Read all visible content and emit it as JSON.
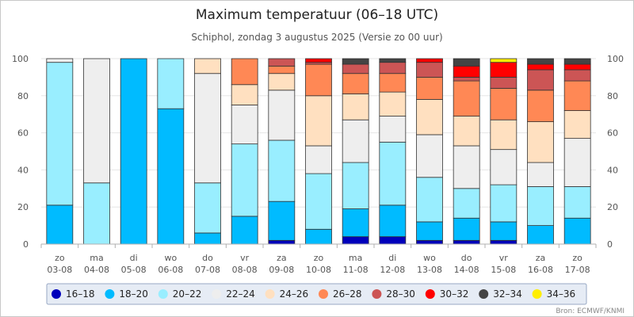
{
  "chart_data": {
    "type": "bar",
    "stacked": true,
    "title": "Maximum temperatuur (06–18 UTC)",
    "subtitle": "Schiphol, zondag 3 augustus 2025 (Versie zo 00 uur)",
    "credit": "Bron: ECMWF/KNMI",
    "ylim": [
      0,
      100
    ],
    "yticks": [
      "0",
      "20",
      "40",
      "60",
      "80",
      "100"
    ],
    "grid": true,
    "legend_position": "bottom",
    "categories": [
      {
        "day": "zo",
        "date": "03-08"
      },
      {
        "day": "ma",
        "date": "04-08"
      },
      {
        "day": "di",
        "date": "05-08"
      },
      {
        "day": "wo",
        "date": "06-08"
      },
      {
        "day": "do",
        "date": "07-08"
      },
      {
        "day": "vr",
        "date": "08-08"
      },
      {
        "day": "za",
        "date": "09-08"
      },
      {
        "day": "zo",
        "date": "10-08"
      },
      {
        "day": "ma",
        "date": "11-08"
      },
      {
        "day": "di",
        "date": "12-08"
      },
      {
        "day": "wo",
        "date": "13-08"
      },
      {
        "day": "do",
        "date": "14-08"
      },
      {
        "day": "vr",
        "date": "15-08"
      },
      {
        "day": "za",
        "date": "16-08"
      },
      {
        "day": "zo",
        "date": "17-08"
      }
    ],
    "series": [
      {
        "name": "16–18",
        "color": "#0000bb",
        "values": [
          0,
          0,
          0,
          0,
          0,
          0,
          2,
          0,
          4,
          4,
          2,
          2,
          2,
          0,
          0
        ]
      },
      {
        "name": "18–20",
        "color": "#00bbff",
        "values": [
          21,
          0,
          100,
          73,
          6,
          15,
          21,
          8,
          15,
          17,
          10,
          12,
          10,
          10,
          14
        ]
      },
      {
        "name": "20–22",
        "color": "#99eeff",
        "values": [
          77,
          33,
          0,
          27,
          27,
          39,
          33,
          30,
          25,
          34,
          24,
          16,
          20,
          21,
          17
        ]
      },
      {
        "name": "22–24",
        "color": "#eeeeee",
        "values": [
          2,
          67,
          0,
          0,
          59,
          21,
          27,
          15,
          23,
          14,
          23,
          23,
          19,
          13,
          26
        ]
      },
      {
        "name": "24–26",
        "color": "#ffe0c0",
        "values": [
          0,
          0,
          0,
          0,
          8,
          11,
          9,
          27,
          14,
          13,
          19,
          16,
          16,
          22,
          15
        ]
      },
      {
        "name": "26–28",
        "color": "#ff8855",
        "values": [
          0,
          0,
          0,
          0,
          0,
          14,
          4,
          17,
          11,
          10,
          12,
          19,
          17,
          17,
          16
        ]
      },
      {
        "name": "28–30",
        "color": "#cc5555",
        "values": [
          0,
          0,
          0,
          0,
          0,
          0,
          4,
          1,
          5,
          6,
          8,
          2,
          6,
          11,
          6
        ]
      },
      {
        "name": "30–32",
        "color": "#ff0000",
        "values": [
          0,
          0,
          0,
          0,
          0,
          0,
          0,
          2,
          0,
          0,
          2,
          6,
          8,
          3,
          3
        ]
      },
      {
        "name": "32–34",
        "color": "#444444",
        "values": [
          0,
          0,
          0,
          0,
          0,
          0,
          0,
          0,
          3,
          2,
          0,
          4,
          0,
          3,
          3
        ]
      },
      {
        "name": "34–36",
        "color": "#ffee00",
        "values": [
          0,
          0,
          0,
          0,
          0,
          0,
          0,
          0,
          0,
          0,
          0,
          0,
          2,
          0,
          0
        ]
      }
    ]
  }
}
